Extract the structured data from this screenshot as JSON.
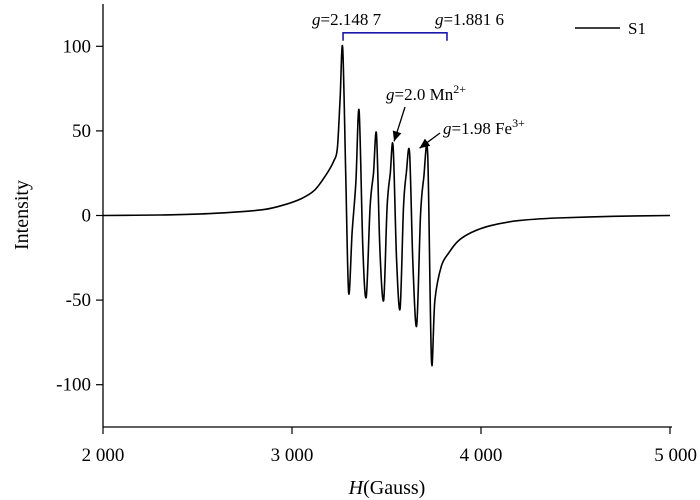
{
  "chart_data": {
    "type": "line",
    "xlabel_italic": "H",
    "xlabel_rest": "(Gauss)",
    "ylabel": "Intensity",
    "xlim": [
      2000,
      5000
    ],
    "ylim": [
      -125,
      125
    ],
    "xticks": [
      2000,
      3000,
      4000,
      5000
    ],
    "xtick_labels": [
      "2 000",
      "3 000",
      "4 000",
      "5 000"
    ],
    "yticks": [
      100,
      50,
      0,
      -50,
      -100
    ],
    "ytick_labels": [
      "100",
      "50",
      "0",
      "-50",
      "-100"
    ],
    "grid": false,
    "legend_position": "top-right",
    "series": [
      {
        "name": "S1",
        "color": "#000000",
        "x": [
          2000,
          2300,
          2500,
          2700,
          2850,
          2950,
          3050,
          3120,
          3180,
          3220,
          3240,
          3255,
          3268,
          3285,
          3300,
          3318,
          3338,
          3355,
          3375,
          3393,
          3413,
          3431,
          3447,
          3465,
          3485,
          3503,
          3520,
          3535,
          3553,
          3572,
          3590,
          3605,
          3622,
          3640,
          3660,
          3680,
          3697,
          3718,
          3738,
          3756,
          3790,
          3830,
          3880,
          3950,
          4050,
          4200,
          4400,
          4700,
          5000
        ],
        "y": [
          0,
          0.3,
          0.8,
          2,
          3.5,
          6,
          10,
          15,
          24,
          32,
          40,
          70,
          99,
          20,
          -46,
          -10,
          20,
          62,
          -20,
          -48,
          5,
          25,
          48,
          -20,
          -50,
          5,
          25,
          41,
          -25,
          -55,
          5,
          25,
          37,
          -30,
          -65,
          0,
          22,
          36,
          -86,
          -50,
          -30,
          -22,
          -15,
          -10,
          -6,
          -3,
          -1.5,
          -0.5,
          0
        ]
      }
    ],
    "annotations": {
      "bracket_left": {
        "prefix": "g",
        "value": "=2.148 7"
      },
      "bracket_right": {
        "prefix": "g",
        "value": "=1.881 6"
      },
      "bracket_color": "#1a1aa8",
      "bracket_x": [
        3270,
        3820
      ],
      "bracket_y": 108,
      "mn": {
        "prefix": "g",
        "value": "=2.0  Mn",
        "sup": "2+",
        "arrow_to": [
          3540,
          42
        ]
      },
      "fe": {
        "prefix": "g",
        "value": "=1.98  Fe",
        "sup": "3+",
        "arrow_to": [
          3643,
          38
        ]
      }
    }
  }
}
